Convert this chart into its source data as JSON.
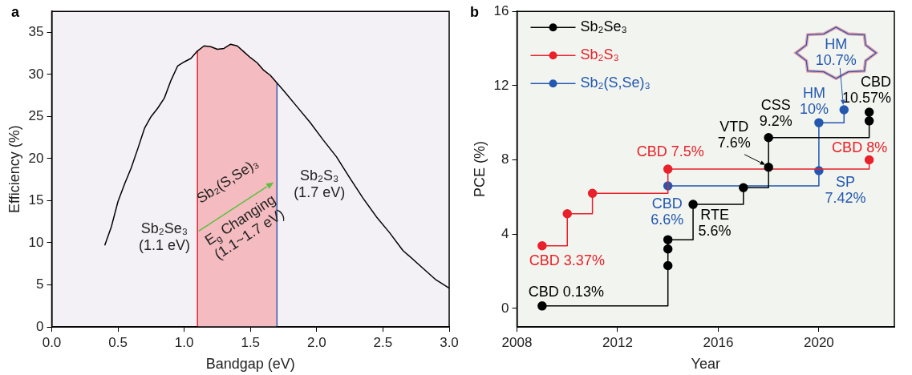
{
  "chart_data": [
    {
      "type": "line",
      "title": "a",
      "xlabel": "Bandgap (eV)",
      "ylabel": "Efficiency (%)",
      "xlim": [
        0,
        3
      ],
      "ylim": [
        0,
        37.5
      ],
      "xticks": [
        {
          "value": 0,
          "label": "0.0"
        },
        {
          "value": 0.5,
          "label": "0.5"
        },
        {
          "value": 1,
          "label": "1.0"
        },
        {
          "value": 1.5,
          "label": "1.5"
        },
        {
          "value": 2,
          "label": "2.0"
        },
        {
          "value": 2.5,
          "label": "2.5"
        },
        {
          "value": 3,
          "label": "3.0"
        }
      ],
      "yticks": [
        0,
        5,
        10,
        15,
        20,
        25,
        30,
        35
      ],
      "grid": false,
      "legend": false,
      "marker": "none",
      "line_style": "solid",
      "series": [
        {
          "color": "#000000",
          "x": [
            0.4,
            0.45,
            0.5,
            0.55,
            0.6,
            0.65,
            0.7,
            0.75,
            0.8,
            0.85,
            0.9,
            0.95,
            1.0,
            1.05,
            1.1,
            1.15,
            1.2,
            1.25,
            1.3,
            1.35,
            1.4,
            1.45,
            1.5,
            1.55,
            1.6,
            1.65,
            1.7,
            1.75,
            1.85,
            1.95,
            2.05,
            2.15,
            2.25,
            2.35,
            2.45,
            2.55,
            2.65,
            2.8,
            2.9,
            3.0
          ],
          "values": [
            9.7,
            11.9,
            14.9,
            17.0,
            18.9,
            21.2,
            23.6,
            25.0,
            26.0,
            27.2,
            29.3,
            31.0,
            31.5,
            31.9,
            32.8,
            33.4,
            33.3,
            33.0,
            33.1,
            33.6,
            33.4,
            32.7,
            32.0,
            31.4,
            30.5,
            29.9,
            29.0,
            28.1,
            26.2,
            24.3,
            22.2,
            20.2,
            17.7,
            15.3,
            13.1,
            11.2,
            9.1,
            7.0,
            5.6,
            4.6
          ]
        }
      ],
      "bands": [
        {
          "axis": "x",
          "from": 1.1,
          "to": 1.7,
          "color": "#f4bcc0"
        }
      ],
      "ref_lines": [
        {
          "axis": "x",
          "value": 1.1,
          "color": "#e8212a"
        },
        {
          "axis": "x",
          "value": 1.7,
          "color": "#3a5fb0"
        }
      ],
      "annotations": [
        "Sb₂Se₃\n(1.1 eV)",
        "Sb₂S₃\n(1.7 eV)",
        {
          "text": "Sb₂(S,Se)₃",
          "x": 1.7,
          "y": 17.2
        },
        "E$_{g}$ Changing\n(1.1~1.7 eV)"
      ]
    },
    {
      "type": "step",
      "title": "b",
      "xlabel": "Year",
      "ylabel": "PCE (%)",
      "xlim": [
        2008,
        2023
      ],
      "ylim": [
        -1,
        16
      ],
      "xticks": [
        2008,
        2012,
        2016,
        2020
      ],
      "yticks": [
        0,
        4,
        8,
        12,
        16
      ],
      "grid": false,
      "legend": "top left",
      "marker": "circle",
      "line_style": "solid",
      "series": [
        {
          "name": "Sb₂Se₃",
          "color": "#000000",
          "x": [
            2009,
            2014,
            2014,
            2014,
            2015,
            2017,
            2018,
            2018,
            2022,
            2022
          ],
          "values": [
            0.13,
            2.3,
            3.2,
            3.7,
            5.6,
            6.5,
            7.6,
            9.2,
            10.1,
            10.57
          ]
        },
        {
          "name": "Sb₂S₃",
          "color": "#e8212a",
          "x": [
            2009,
            2010,
            2011,
            2014,
            2022
          ],
          "values": [
            3.37,
            5.1,
            6.2,
            7.5,
            8.0
          ]
        },
        {
          "name": "Sb₂(S,Se)₃",
          "color": "#2357b0",
          "x": [
            2014,
            2020,
            2020,
            2021
          ],
          "values": [
            6.6,
            7.42,
            10.0,
            10.7
          ]
        }
      ],
      "annotations": [
        {
          "text": "CBD 0.13%",
          "x": 2009,
          "y": 0.13
        },
        {
          "text": "CBD 3.37%",
          "x": 2009,
          "y": 3.37
        },
        {
          "text": "CBD 7.5%",
          "x": 2014,
          "y": 7.5
        },
        {
          "text": "CBD\n6.6%",
          "x": 2014,
          "y": 6.6
        },
        {
          "text": "RTE\n5.6%",
          "x": 2015,
          "y": 5.6
        },
        {
          "text": "VTD\n7.6%",
          "x": 2018,
          "y": 7.6
        },
        {
          "text": "CSS\n9.2%",
          "x": 2018,
          "y": 9.2
        },
        {
          "text": "HM\n10%",
          "x": 2020,
          "y": 10.0
        },
        {
          "text": "HM\n10.7%",
          "x": 2021,
          "y": 10.7
        },
        {
          "text": "CBD\n10.57%",
          "x": 2022,
          "y": 10.57
        },
        {
          "text": "CBD 8%",
          "x": 2022,
          "y": 8.0
        },
        {
          "text": "SP\n7.42%",
          "x": 2020,
          "y": 7.42
        }
      ]
    }
  ]
}
